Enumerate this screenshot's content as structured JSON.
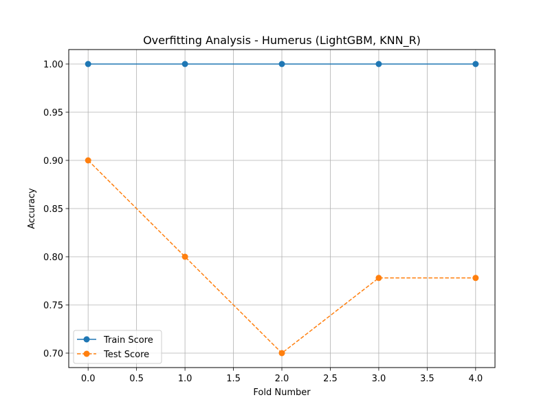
{
  "chart_data": {
    "type": "line",
    "title": "Overfitting Analysis - Humerus (LightGBM, KNN_R)",
    "xlabel": "Fold Number",
    "ylabel": "Accuracy",
    "x": [
      0,
      1,
      2,
      3,
      4
    ],
    "xlim": [
      -0.2,
      4.2
    ],
    "ylim": [
      0.685,
      1.015
    ],
    "xticks": [
      0.0,
      0.5,
      1.0,
      1.5,
      2.0,
      2.5,
      3.0,
      3.5,
      4.0
    ],
    "xtick_labels": [
      "0.0",
      "0.5",
      "1.0",
      "1.5",
      "2.0",
      "2.5",
      "3.0",
      "3.5",
      "4.0"
    ],
    "yticks": [
      0.7,
      0.75,
      0.8,
      0.85,
      0.9,
      0.95,
      1.0
    ],
    "ytick_labels": [
      "0.70",
      "0.75",
      "0.80",
      "0.85",
      "0.90",
      "0.95",
      "1.00"
    ],
    "grid": true,
    "legend_position": "lower-left",
    "series": [
      {
        "name": "Train Score",
        "values": [
          1.0,
          1.0,
          1.0,
          1.0,
          1.0
        ],
        "color": "#1f77b4",
        "style": "solid",
        "marker": "circle"
      },
      {
        "name": "Test Score",
        "values": [
          0.9,
          0.8,
          0.7,
          0.778,
          0.778
        ],
        "color": "#ff7f0e",
        "style": "dashed",
        "marker": "circle"
      }
    ]
  }
}
